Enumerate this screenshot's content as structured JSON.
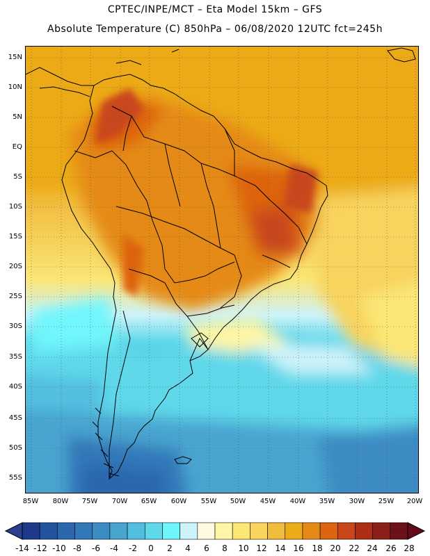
{
  "header": {
    "line1": "CPTEC/INPE/MCT –  Eta Model 15km – GFS",
    "line2": "Absolute Temperature (C) 850hPa – 06/08/2020 12UTC fct=245h"
  },
  "map": {
    "region": "South America",
    "lat_ticks": [
      "15N",
      "10N",
      "5N",
      "EQ",
      "5S",
      "10S",
      "15S",
      "20S",
      "25S",
      "30S",
      "35S",
      "40S",
      "45S",
      "50S",
      "55S"
    ],
    "lon_ticks": [
      "85W",
      "80W",
      "75W",
      "70W",
      "65W",
      "60W",
      "55W",
      "50W",
      "45W",
      "40W",
      "35W",
      "30W",
      "25W",
      "20W"
    ]
  },
  "colorbar": {
    "labels": [
      "-14",
      "-12",
      "-10",
      "-8",
      "-6",
      "-4",
      "-2",
      "0",
      "2",
      "4",
      "6",
      "8",
      "10",
      "12",
      "14",
      "16",
      "18",
      "20",
      "22",
      "24",
      "26",
      "28"
    ],
    "colors": [
      "#1d3a8a",
      "#23529e",
      "#2b67ad",
      "#3279b9",
      "#3c8cc4",
      "#4aa4d0",
      "#52bfe0",
      "#5ed8ea",
      "#6ff6fb",
      "#cdf3fa",
      "#fff9df",
      "#fef6a4",
      "#fbe676",
      "#f8d35d",
      "#f1bd3f",
      "#ecab19",
      "#e58a16",
      "#dd6410",
      "#c9471a",
      "#ad2e12",
      "#8c1f18",
      "#6a1218"
    ],
    "under_color": "#2a3f8f",
    "over_color": "#650a1a"
  }
}
